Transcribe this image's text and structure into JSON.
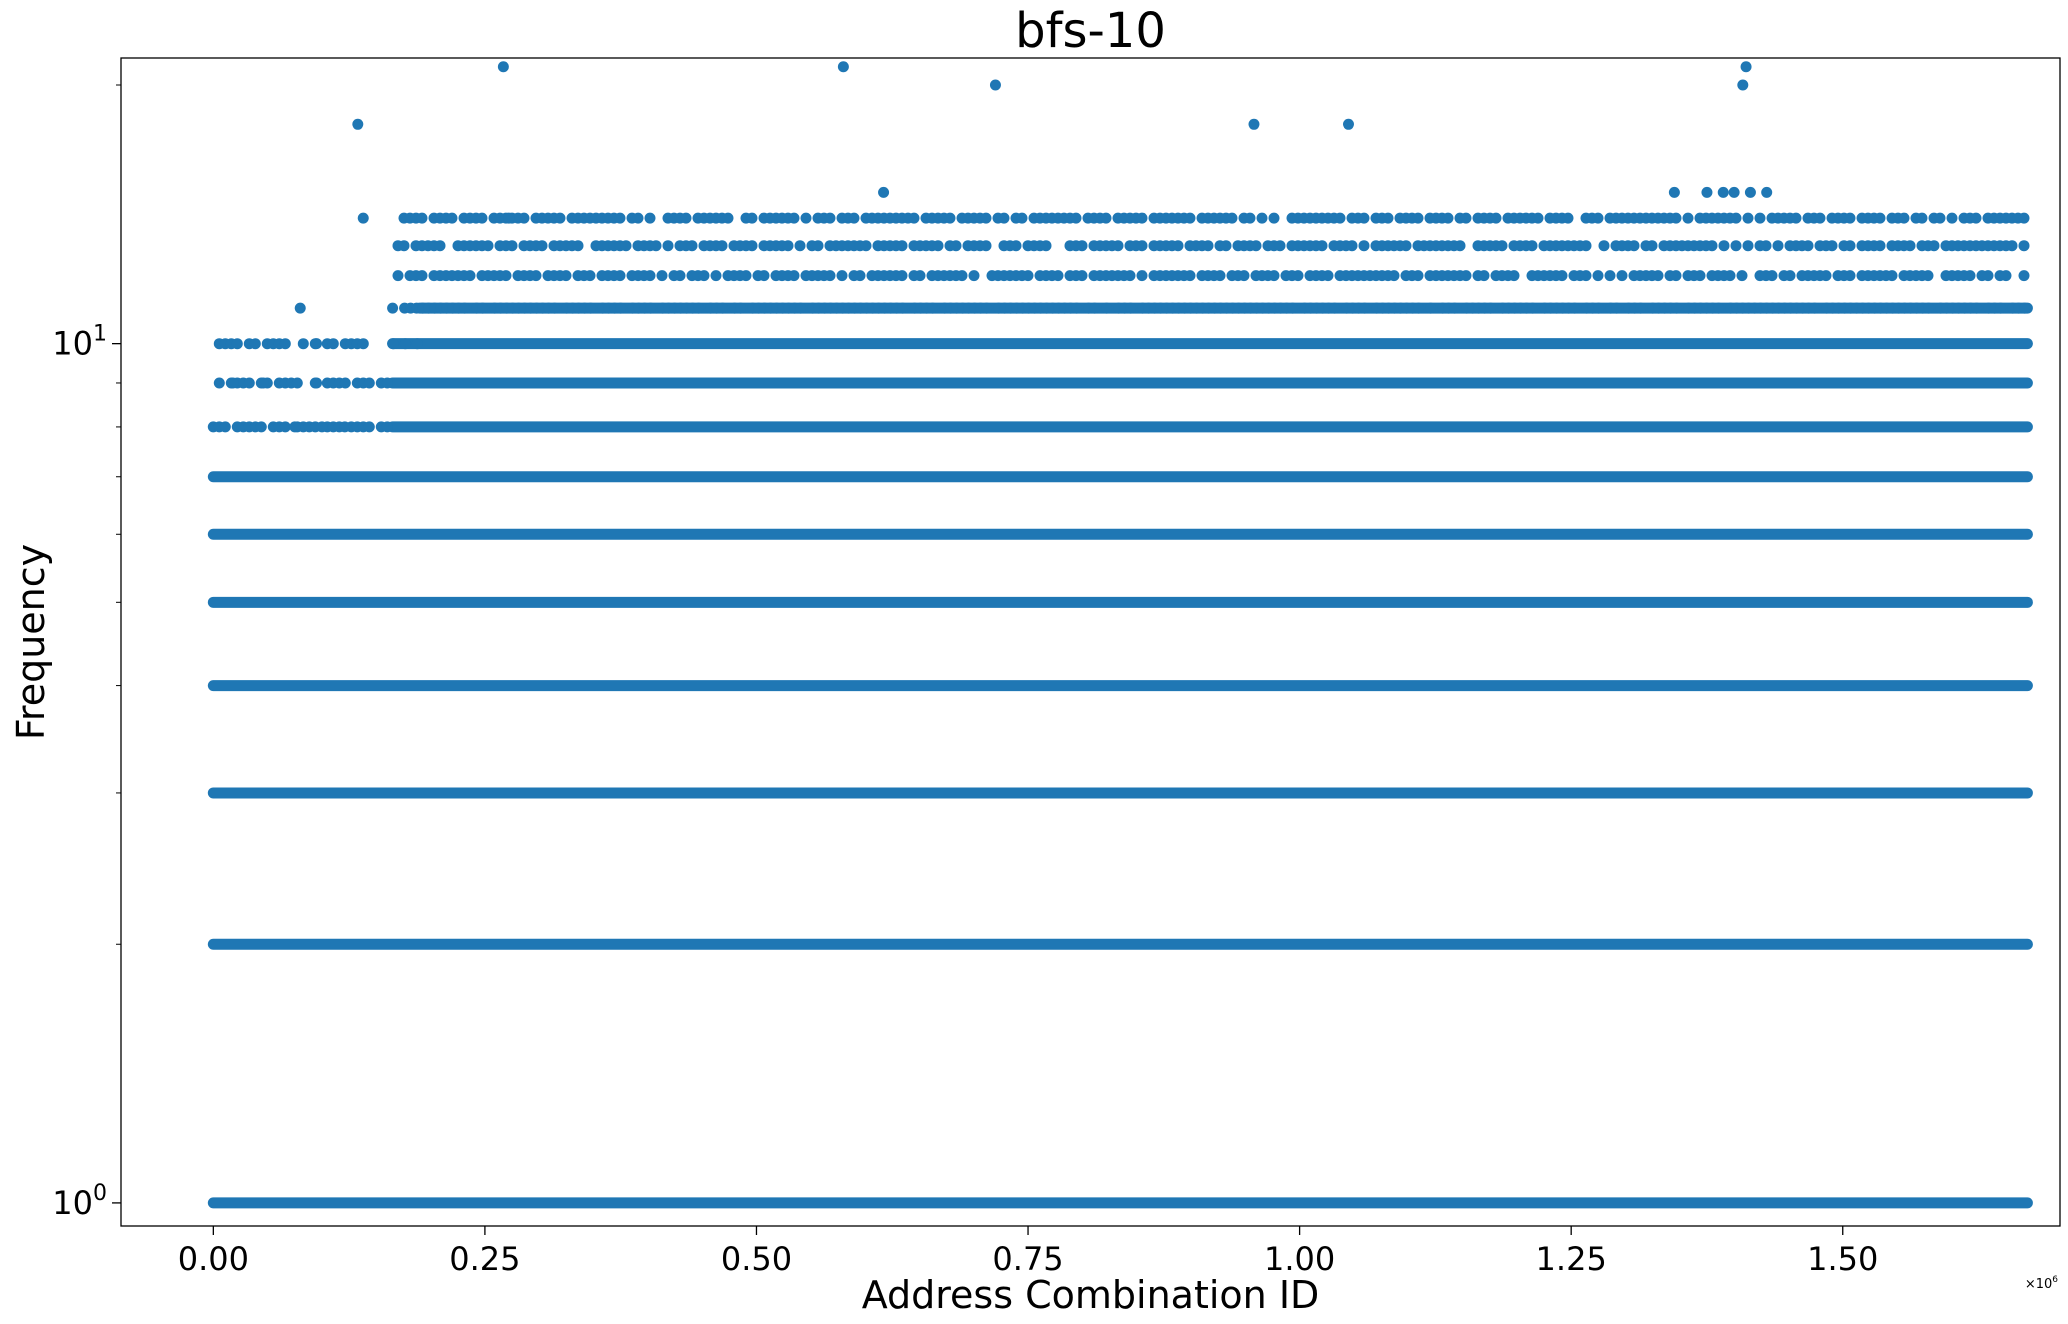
{
  "chart_data": {
    "type": "scatter",
    "title": "bfs-10",
    "xlabel": "Address Combination ID",
    "ylabel": "Frequency",
    "x_offset_text": {
      "base": "×10",
      "exp": "6"
    },
    "xlim": [
      -0.085,
      1.7
    ],
    "ylim": [
      0.94,
      21.5
    ],
    "yscale": "log",
    "grid": false,
    "marker_color": "#1f77b4",
    "x_ticks": [
      {
        "value": 0.0,
        "label": "0.00"
      },
      {
        "value": 0.25,
        "label": "0.25"
      },
      {
        "value": 0.5,
        "label": "0.50"
      },
      {
        "value": 0.75,
        "label": "0.75"
      },
      {
        "value": 1.0,
        "label": "1.00"
      },
      {
        "value": 1.25,
        "label": "1.25"
      },
      {
        "value": 1.5,
        "label": "1.50"
      }
    ],
    "y_ticks": [
      {
        "value": 1,
        "base": "10",
        "exp": "0"
      },
      {
        "value": 10,
        "base": "10",
        "exp": "1"
      }
    ],
    "dense_bands": [
      {
        "y": 1,
        "x_start": 0.0,
        "x_end": 1.67
      },
      {
        "y": 2,
        "x_start": 0.0,
        "x_end": 1.67
      },
      {
        "y": 3,
        "x_start": 0.0,
        "x_end": 1.67
      },
      {
        "y": 4,
        "x_start": 0.0,
        "x_end": 1.67
      },
      {
        "y": 5,
        "x_start": 0.0,
        "x_end": 1.67
      },
      {
        "y": 6,
        "x_start": 0.0,
        "x_end": 1.67
      },
      {
        "y": 7,
        "x_start": 0.0,
        "x_end": 1.67
      },
      {
        "y": 8,
        "x_start": 0.165,
        "x_end": 1.67
      },
      {
        "y": 9,
        "x_start": 0.165,
        "x_end": 1.67
      },
      {
        "y": 10,
        "x_start": 0.165,
        "x_end": 1.67
      },
      {
        "y": 11,
        "x_start": 0.19,
        "x_end": 1.67
      }
    ],
    "sparse_bands": [
      {
        "y": 8,
        "x_start": 0.0,
        "x_end": 0.165,
        "density": 0.75
      },
      {
        "y": 9,
        "x_start": 0.0,
        "x_end": 0.165,
        "density": 0.12
      },
      {
        "y": 10,
        "x_start": 0.0,
        "x_end": 0.19,
        "density": 0.12
      },
      {
        "y": 11,
        "x_start": 0.165,
        "x_end": 1.67,
        "density": 0.82
      },
      {
        "y": 12,
        "x_start": 0.17,
        "x_end": 1.67,
        "density": 0.55
      },
      {
        "y": 13,
        "x_start": 0.17,
        "x_end": 1.67,
        "density": 0.6
      },
      {
        "y": 14,
        "x_start": 0.17,
        "x_end": 1.67,
        "density": 0.58
      }
    ],
    "outliers": [
      {
        "x": 0.018,
        "y": 9
      },
      {
        "x": 0.046,
        "y": 9
      },
      {
        "x": 0.075,
        "y": 8
      },
      {
        "x": 0.1,
        "y": 8
      },
      {
        "x": 0.121,
        "y": 8
      },
      {
        "x": 0.095,
        "y": 9
      },
      {
        "x": 0.095,
        "y": 10
      },
      {
        "x": 0.08,
        "y": 11
      },
      {
        "x": 0.133,
        "y": 18
      },
      {
        "x": 0.138,
        "y": 14
      },
      {
        "x": 0.267,
        "y": 21
      },
      {
        "x": 0.272,
        "y": 14
      },
      {
        "x": 0.58,
        "y": 21
      },
      {
        "x": 0.617,
        "y": 15
      },
      {
        "x": 0.72,
        "y": 20
      },
      {
        "x": 0.958,
        "y": 18
      },
      {
        "x": 1.045,
        "y": 18
      },
      {
        "x": 1.345,
        "y": 15
      },
      {
        "x": 1.375,
        "y": 15
      },
      {
        "x": 1.39,
        "y": 15
      },
      {
        "x": 1.4,
        "y": 15
      },
      {
        "x": 1.415,
        "y": 15
      },
      {
        "x": 1.43,
        "y": 15
      },
      {
        "x": 1.408,
        "y": 20
      },
      {
        "x": 1.411,
        "y": 21
      }
    ]
  }
}
